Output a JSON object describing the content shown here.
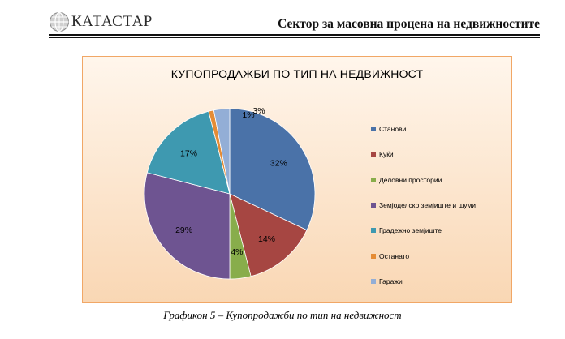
{
  "header": {
    "logo_text": "КАТАСТАР",
    "sector_title": "Сектор за масовна процена на недвижностите"
  },
  "chart_data": {
    "type": "pie",
    "title": "КУПОПРОДАЖБИ ПО ТИП НА НЕДВИЖНОСТ",
    "legend_position": "right",
    "slices": [
      {
        "label": "Станови",
        "value": 32,
        "display": "32%",
        "color": "#4a72a8"
      },
      {
        "label": "Куќи",
        "value": 14,
        "display": "14%",
        "color": "#a64642"
      },
      {
        "label": "Деловни простории",
        "value": 4,
        "display": "4%",
        "color": "#88ad4b"
      },
      {
        "label": "Земјоделско земјиште и шуми",
        "value": 29,
        "display": "29%",
        "color": "#6e5491"
      },
      {
        "label": "Градежно земјиште",
        "value": 17,
        "display": "17%",
        "color": "#3e99b0"
      },
      {
        "label": "Останато",
        "value": 1,
        "display": "1%",
        "color": "#e58c35"
      },
      {
        "label": "Гаражи",
        "value": 3,
        "display": "3%",
        "color": "#93aed6"
      }
    ]
  },
  "caption": "Графикон 5  – Купопродажби по тип на недвижност"
}
